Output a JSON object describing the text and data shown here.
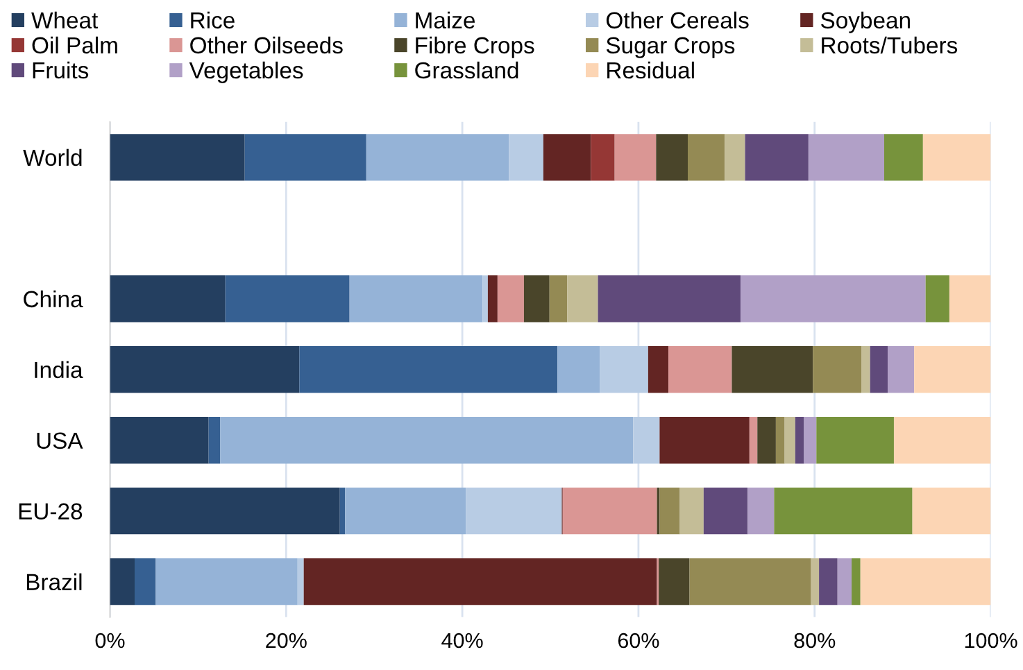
{
  "chart_data": {
    "type": "bar",
    "orientation": "horizontal",
    "stacked": true,
    "categories": [
      "World",
      null,
      "China",
      "India",
      "USA",
      "EU-28",
      "Brazil"
    ],
    "series": [
      {
        "name": "Wheat",
        "color": "#243f60",
        "values": [
          15.3,
          null,
          13.1,
          21.5,
          11.2,
          26.1,
          2.8
        ]
      },
      {
        "name": "Rice",
        "color": "#366092",
        "values": [
          13.8,
          null,
          14.1,
          29.3,
          1.3,
          0.6,
          2.4
        ]
      },
      {
        "name": "Maize",
        "color": "#95b3d7",
        "values": [
          16.2,
          null,
          15.1,
          4.8,
          46.9,
          13.7,
          16.1
        ]
      },
      {
        "name": "Other Cereals",
        "color": "#b8cce4",
        "values": [
          3.9,
          null,
          0.6,
          5.5,
          3.0,
          10.9,
          0.7
        ]
      },
      {
        "name": "Soybean",
        "color": "#632523",
        "values": [
          5.4,
          null,
          1.1,
          2.3,
          10.2,
          0.1,
          40.1
        ]
      },
      {
        "name": "Oil Palm",
        "color": "#953735",
        "values": [
          2.7,
          null,
          0,
          0,
          0,
          0,
          0
        ]
      },
      {
        "name": "Other Oilseeds",
        "color": "#da9694",
        "values": [
          4.7,
          null,
          3.0,
          7.2,
          0.9,
          10.7,
          0.2
        ]
      },
      {
        "name": "Fibre Crops",
        "color": "#4a452a",
        "values": [
          3.6,
          null,
          2.9,
          9.2,
          2.1,
          0.3,
          3.5
        ]
      },
      {
        "name": "Sugar Crops",
        "color": "#948a54",
        "values": [
          4.2,
          null,
          2.0,
          5.5,
          1.0,
          2.3,
          13.8
        ]
      },
      {
        "name": "Roots/Tubers",
        "color": "#c4bd97",
        "values": [
          2.3,
          null,
          3.5,
          1.0,
          1.2,
          2.7,
          0.9
        ]
      },
      {
        "name": "Fruits",
        "color": "#604a7b",
        "values": [
          7.2,
          null,
          16.2,
          2.0,
          1.0,
          5.0,
          2.1
        ]
      },
      {
        "name": "Vegetables",
        "color": "#b1a0c7",
        "values": [
          8.6,
          null,
          21.0,
          3.0,
          1.4,
          3.0,
          1.6
        ]
      },
      {
        "name": "Grassland",
        "color": "#77933c",
        "values": [
          4.4,
          null,
          2.7,
          0,
          8.8,
          15.7,
          1.0
        ]
      },
      {
        "name": "Residual",
        "color": "#fcd5b4",
        "values": [
          7.7,
          null,
          4.7,
          8.7,
          11.0,
          8.9,
          14.8
        ]
      }
    ],
    "xlim": [
      0,
      100
    ],
    "xticks": [
      {
        "value": 0,
        "label": "0%"
      },
      {
        "value": 20,
        "label": "20%"
      },
      {
        "value": 40,
        "label": "40%"
      },
      {
        "value": 60,
        "label": "60%"
      },
      {
        "value": 80,
        "label": "80%"
      },
      {
        "value": 100,
        "label": "100%"
      }
    ],
    "grid": "x",
    "legend": "top"
  }
}
